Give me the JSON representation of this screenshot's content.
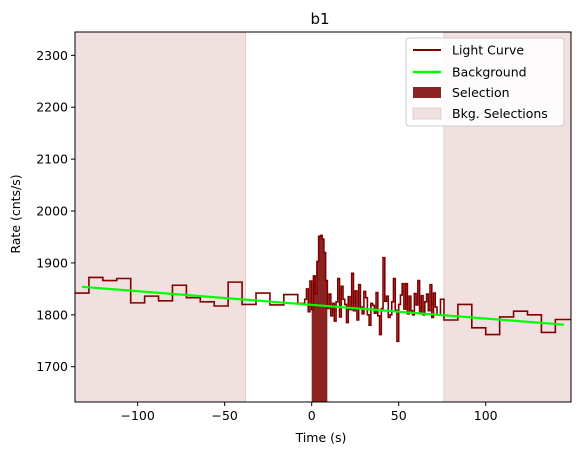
{
  "chart_data": {
    "type": "line",
    "title": "b1",
    "xlabel": "Time (s)",
    "ylabel": "Rate (cnts/s)",
    "xlim": [
      -136,
      149
    ],
    "ylim": [
      1632,
      2345
    ],
    "xticks": [
      -100,
      -50,
      0,
      50,
      100
    ],
    "yticks": [
      1700,
      1800,
      1900,
      2000,
      2100,
      2200,
      2300
    ],
    "legend_position": "top-right",
    "grid": false,
    "colors": {
      "light_curve": "#800000",
      "background": "#00ff00",
      "selection": "#8b2323",
      "bkg_selection": "#f0e0e0",
      "bkg_selection_edge": "#e2cccc"
    },
    "series": [
      {
        "name": "Light Curve",
        "kind": "step",
        "points": [
          [
            -136,
            1842
          ],
          [
            -128,
            1872
          ],
          [
            -120,
            1866
          ],
          [
            -112,
            1870
          ],
          [
            -104,
            1823
          ],
          [
            -96,
            1836
          ],
          [
            -88,
            1827
          ],
          [
            -80,
            1857
          ],
          [
            -72,
            1833
          ],
          [
            -64,
            1825
          ],
          [
            -56,
            1817
          ],
          [
            -48,
            1863
          ],
          [
            -40,
            1820
          ],
          [
            -32,
            1842
          ],
          [
            -24,
            1819
          ],
          [
            -16,
            1839
          ],
          [
            -8,
            1822
          ],
          [
            -4,
            1830
          ],
          [
            -3,
            1850
          ],
          [
            -2,
            1806
          ],
          [
            -1,
            1865
          ],
          [
            0,
            1810
          ],
          [
            1,
            1875
          ],
          [
            2,
            1840
          ],
          [
            3,
            1903
          ],
          [
            4,
            1951
          ],
          [
            5,
            1953
          ],
          [
            6,
            1946
          ],
          [
            7,
            1920
          ],
          [
            8,
            1866
          ],
          [
            9,
            1812
          ],
          [
            10,
            1840
          ],
          [
            11,
            1798
          ],
          [
            12,
            1822
          ],
          [
            13,
            1788
          ],
          [
            14,
            1825
          ],
          [
            15,
            1870
          ],
          [
            16,
            1796
          ],
          [
            17,
            1855
          ],
          [
            18,
            1830
          ],
          [
            19,
            1820
          ],
          [
            20,
            1785
          ],
          [
            21,
            1835
          ],
          [
            22,
            1810
          ],
          [
            23,
            1880
          ],
          [
            24,
            1808
          ],
          [
            25,
            1846
          ],
          [
            26,
            1790
          ],
          [
            27,
            1858
          ],
          [
            28,
            1815
          ],
          [
            29,
            1802
          ],
          [
            30,
            1845
          ],
          [
            31,
            1833
          ],
          [
            32,
            1800
          ],
          [
            33,
            1780
          ],
          [
            34,
            1822
          ],
          [
            35,
            1818
          ],
          [
            36,
            1803
          ],
          [
            37,
            1843
          ],
          [
            38,
            1798
          ],
          [
            39,
            1762
          ],
          [
            40,
            1812
          ],
          [
            41,
            1910
          ],
          [
            42,
            1826
          ],
          [
            43,
            1836
          ],
          [
            44,
            1795
          ],
          [
            45,
            1800
          ],
          [
            46,
            1825
          ],
          [
            47,
            1870
          ],
          [
            48,
            1809
          ],
          [
            49,
            1749
          ],
          [
            50,
            1820
          ],
          [
            51,
            1838
          ],
          [
            52,
            1860
          ],
          [
            53,
            1811
          ],
          [
            54,
            1860
          ],
          [
            55,
            1802
          ],
          [
            56,
            1836
          ],
          [
            57,
            1808
          ],
          [
            58,
            1800
          ],
          [
            59,
            1841
          ],
          [
            60,
            1819
          ],
          [
            61,
            1866
          ],
          [
            62,
            1802
          ],
          [
            63,
            1837
          ],
          [
            64,
            1800
          ],
          [
            65,
            1825
          ],
          [
            66,
            1840
          ],
          [
            67,
            1808
          ],
          [
            68,
            1858
          ],
          [
            69,
            1795
          ],
          [
            70,
            1842
          ],
          [
            71,
            1815
          ],
          [
            72,
            1800
          ],
          [
            74,
            1830
          ],
          [
            76,
            1790
          ],
          [
            84,
            1820
          ],
          [
            92,
            1775
          ],
          [
            100,
            1762
          ],
          [
            108,
            1796
          ],
          [
            116,
            1807
          ],
          [
            124,
            1800
          ],
          [
            132,
            1766
          ],
          [
            140,
            1791
          ],
          [
            149,
            1791
          ]
        ]
      },
      {
        "name": "Background",
        "kind": "line",
        "points": [
          [
            -132,
            1854
          ],
          [
            145,
            1781
          ]
        ]
      }
    ],
    "selection": {
      "name": "Selection",
      "x": [
        0,
        9
      ]
    },
    "bkg_selections": {
      "name": "Bkg. Selections",
      "ranges": [
        [
          -136,
          -38
        ],
        [
          76,
          149
        ]
      ]
    }
  }
}
